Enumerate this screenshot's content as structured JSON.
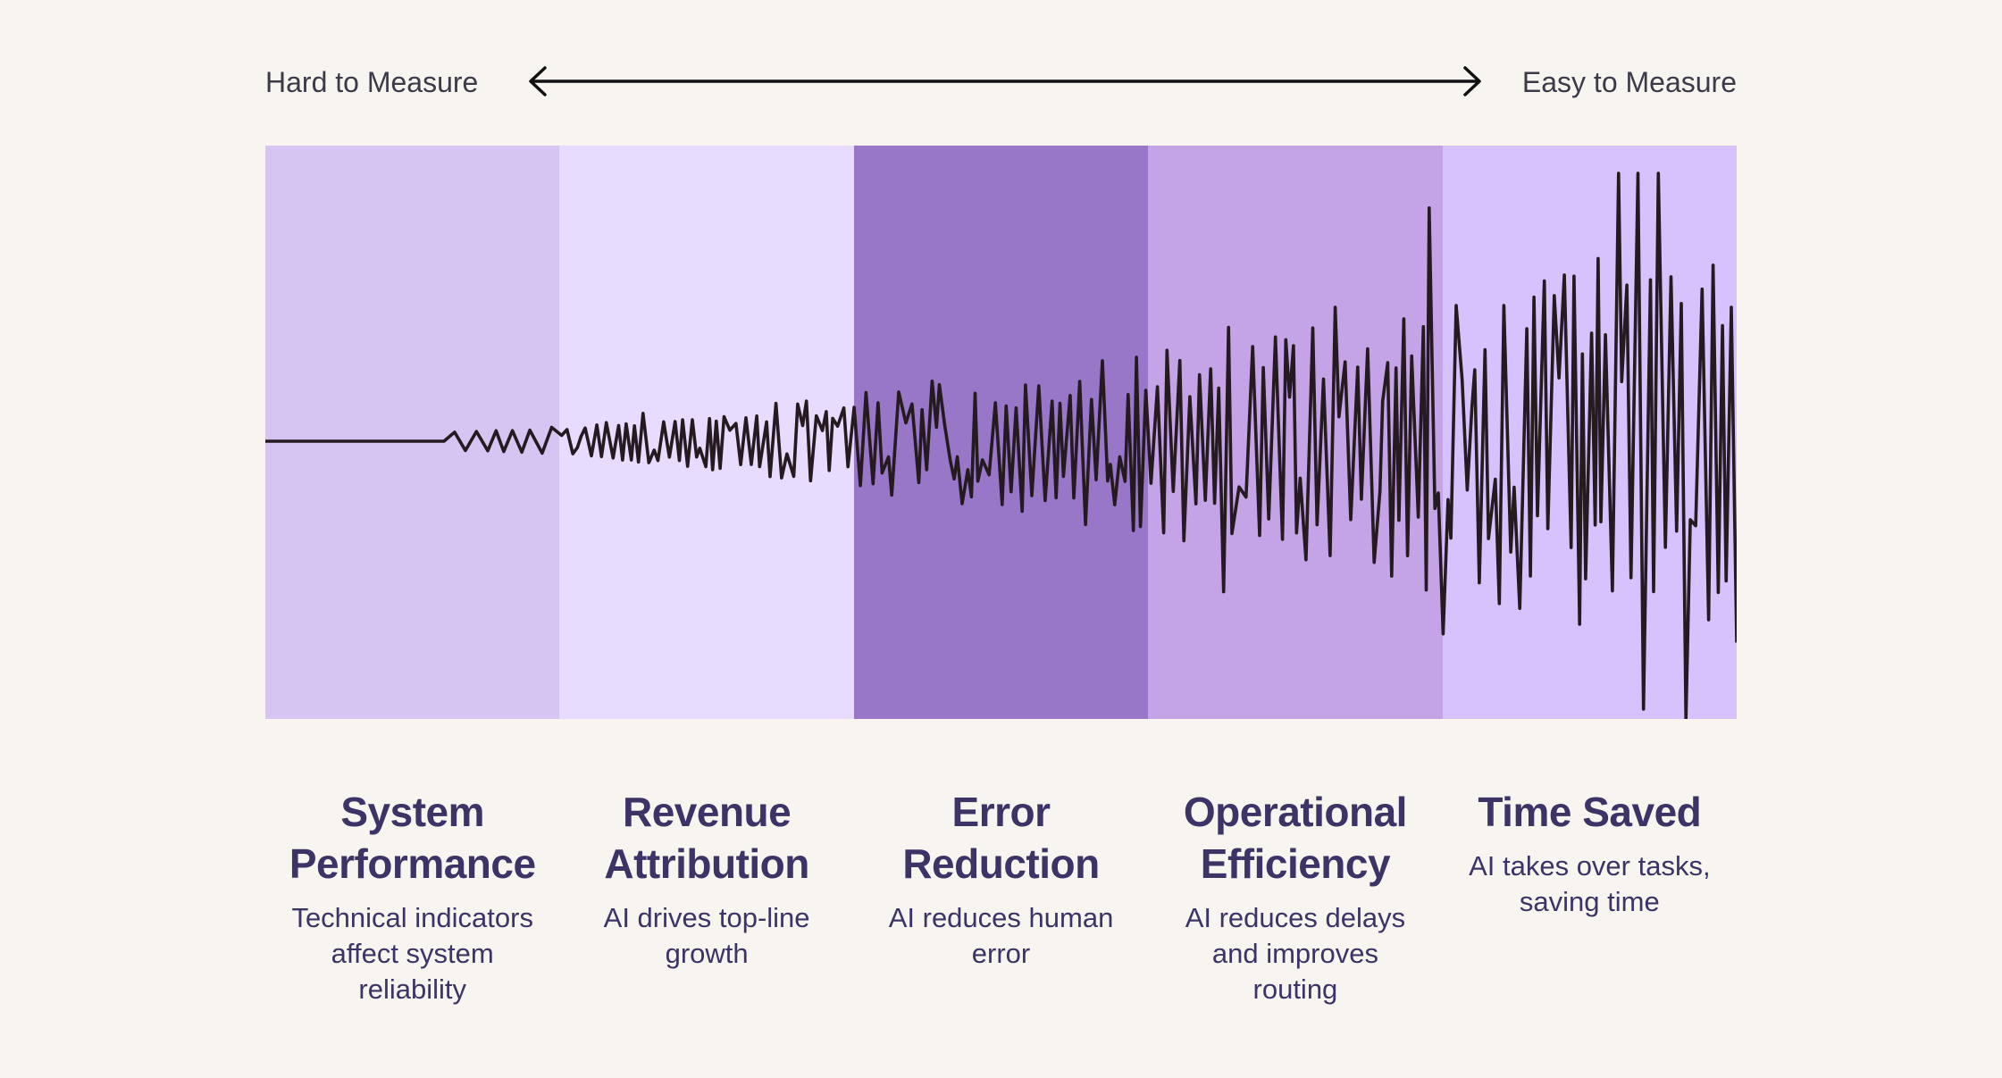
{
  "scale": {
    "left_label": "Hard to Measure",
    "right_label": "Easy to Measure"
  },
  "columns": [
    {
      "title": "System\nPerformance",
      "description": "Technical indicators\naffect system\nreliability",
      "color": "#d6c5f3"
    },
    {
      "title": "Revenue\nAttribution",
      "description": "AI drives top-line\ngrowth",
      "color": "#e8dcfe"
    },
    {
      "title": "Error\nReduction",
      "description": "AI reduces human\nerror",
      "color": "#9877c9"
    },
    {
      "title": "Operational\nEfficiency",
      "description": "AI reduces delays\nand improves\nrouting",
      "color": "#c4a3e6"
    },
    {
      "title": "Time Saved",
      "description": "AI takes over tasks,\nsaving time",
      "color": "#d8c2fd"
    }
  ],
  "colors": {
    "background": "#f8f5f0",
    "wave": "#241a1f",
    "text": "#3d3366",
    "arrow": "#111111"
  }
}
